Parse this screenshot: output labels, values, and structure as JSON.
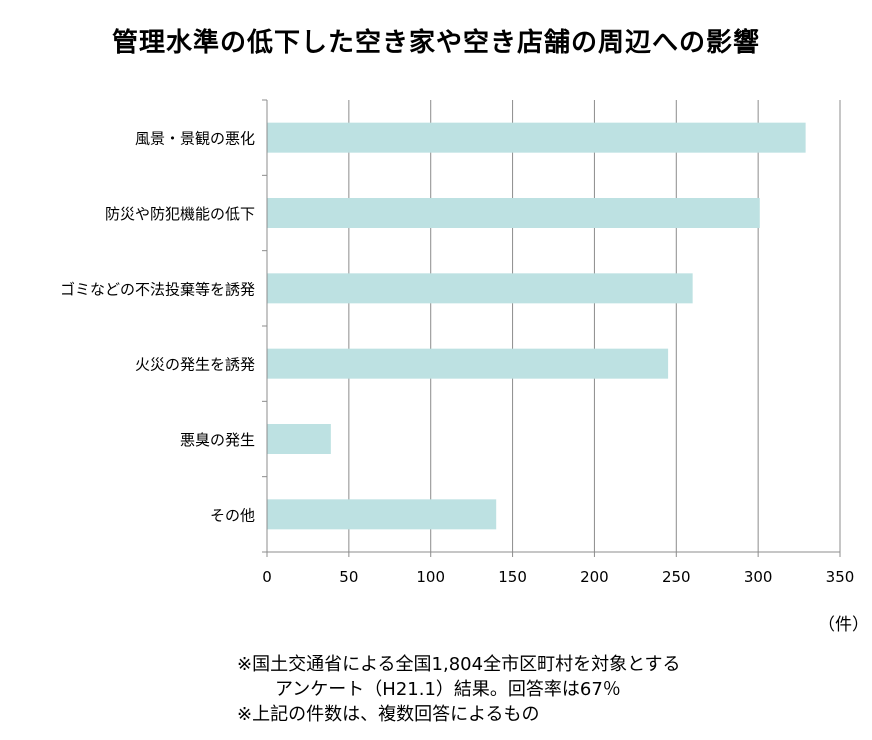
{
  "chart_data": {
    "type": "bar",
    "orientation": "horizontal",
    "title": "管理水準の低下した空き家や空き店舗の周辺への影響",
    "categories": [
      "風景・景観の悪化",
      "防災や防犯機能の低下",
      "ゴミなどの不法投棄等を誘発",
      "火災の発生を誘発",
      "悪臭の発生",
      "その他"
    ],
    "values": [
      329,
      301,
      260,
      245,
      39,
      140
    ],
    "xlim": [
      0,
      350
    ],
    "xticks": [
      "0",
      "50",
      "100",
      "150",
      "200",
      "250",
      "300",
      "350"
    ],
    "unit_label": "（件）",
    "bar_color": "#bde1e2",
    "grid": true
  },
  "notes": {
    "line1": "※国土交通省による全国1,804全市区町村を対象とする",
    "line2": "アンケート（H21.1）結果。回答率は67％",
    "line3": "※上記の件数は、複数回答によるもの"
  }
}
